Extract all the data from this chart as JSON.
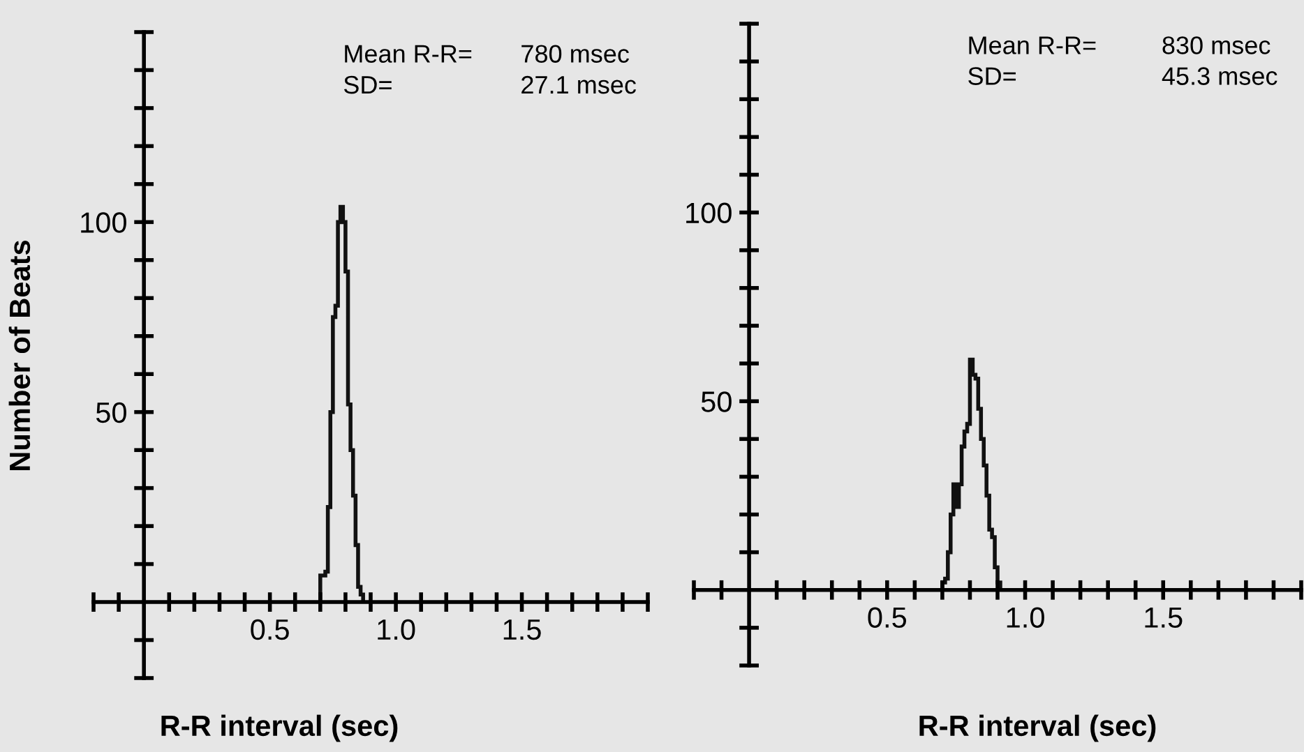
{
  "chart_data": [
    {
      "type": "histogram",
      "xlabel": "R-R interval (sec)",
      "ylabel": "Number of Beats",
      "color": "#111111",
      "annotations": [
        "Mean R-R=",
        "780 msec",
        "SD=",
        "27.1 msec"
      ],
      "bins": [
        0.7,
        0.71,
        0.72,
        0.73,
        0.74,
        0.75,
        0.76,
        0.77,
        0.78,
        0.79,
        0.8,
        0.81,
        0.82,
        0.83,
        0.84,
        0.85,
        0.86,
        0.87
      ],
      "values": [
        7,
        7,
        8,
        25,
        50,
        75,
        78,
        100,
        104,
        100,
        87,
        52,
        40,
        28,
        15,
        4,
        2
      ],
      "xlim": [
        -0.2,
        2.0
      ],
      "ylim": [
        -20,
        150
      ],
      "xticks": [
        {
          "value": -0.2,
          "label": null
        },
        {
          "value": -0.1,
          "label": null
        },
        {
          "value": 0.1,
          "label": null
        },
        {
          "value": 0.2,
          "label": null
        },
        {
          "value": 0.3,
          "label": null
        },
        {
          "value": 0.4,
          "label": null
        },
        {
          "value": 0.5,
          "label": "0.5"
        },
        {
          "value": 0.6,
          "label": null
        },
        {
          "value": 0.7,
          "label": null
        },
        {
          "value": 0.8,
          "label": null
        },
        {
          "value": 0.9,
          "label": null
        },
        {
          "value": 1.0,
          "label": "1.0"
        },
        {
          "value": 1.1,
          "label": null
        },
        {
          "value": 1.2,
          "label": null
        },
        {
          "value": 1.3,
          "label": null
        },
        {
          "value": 1.4,
          "label": null
        },
        {
          "value": 1.5,
          "label": "1.5"
        },
        {
          "value": 1.6,
          "label": null
        },
        {
          "value": 1.7,
          "label": null
        },
        {
          "value": 1.8,
          "label": null
        },
        {
          "value": 1.9,
          "label": null
        },
        {
          "value": 2.0,
          "label": null
        }
      ],
      "yticks": [
        {
          "value": -20,
          "label": null
        },
        {
          "value": -10,
          "label": null
        },
        {
          "value": 10,
          "label": null
        },
        {
          "value": 20,
          "label": null
        },
        {
          "value": 30,
          "label": null
        },
        {
          "value": 40,
          "label": null
        },
        {
          "value": 50,
          "label": "50"
        },
        {
          "value": 60,
          "label": null
        },
        {
          "value": 70,
          "label": null
        },
        {
          "value": 80,
          "label": null
        },
        {
          "value": 90,
          "label": null
        },
        {
          "value": 100,
          "label": "100"
        },
        {
          "value": 110,
          "label": null
        },
        {
          "value": 120,
          "label": null
        },
        {
          "value": 130,
          "label": null
        },
        {
          "value": 140,
          "label": null
        },
        {
          "value": 150,
          "label": null
        }
      ],
      "grid": false,
      "legend": false
    },
    {
      "type": "histogram",
      "xlabel": "R-R interval (sec)",
      "color": "#111111",
      "annotations": [
        "Mean R-R=",
        "830 msec",
        "SD=",
        "45.3 msec"
      ],
      "bins": [
        0.7,
        0.71,
        0.72,
        0.73,
        0.74,
        0.75,
        0.76,
        0.77,
        0.78,
        0.79,
        0.8,
        0.81,
        0.82,
        0.83,
        0.84,
        0.85,
        0.86,
        0.87,
        0.88,
        0.89,
        0.9,
        0.91
      ],
      "values": [
        2,
        3,
        10,
        20,
        28,
        22,
        28,
        38,
        42,
        44,
        61,
        57,
        56,
        48,
        40,
        33,
        25,
        16,
        14,
        6,
        2
      ],
      "xlim": [
        -0.2,
        2.0
      ],
      "ylim": [
        -20,
        150
      ],
      "xticks": [
        {
          "value": -0.2,
          "label": null
        },
        {
          "value": -0.1,
          "label": null
        },
        {
          "value": 0.1,
          "label": null
        },
        {
          "value": 0.2,
          "label": null
        },
        {
          "value": 0.3,
          "label": null
        },
        {
          "value": 0.4,
          "label": null
        },
        {
          "value": 0.5,
          "label": "0.5"
        },
        {
          "value": 0.6,
          "label": null
        },
        {
          "value": 0.7,
          "label": null
        },
        {
          "value": 0.8,
          "label": null
        },
        {
          "value": 0.9,
          "label": null
        },
        {
          "value": 1.0,
          "label": "1.0"
        },
        {
          "value": 1.1,
          "label": null
        },
        {
          "value": 1.2,
          "label": null
        },
        {
          "value": 1.3,
          "label": null
        },
        {
          "value": 1.4,
          "label": null
        },
        {
          "value": 1.5,
          "label": "1.5"
        },
        {
          "value": 1.6,
          "label": null
        },
        {
          "value": 1.7,
          "label": null
        },
        {
          "value": 1.8,
          "label": null
        },
        {
          "value": 1.9,
          "label": null
        },
        {
          "value": 2.0,
          "label": null
        }
      ],
      "yticks": [
        {
          "value": -20,
          "label": null
        },
        {
          "value": -10,
          "label": null
        },
        {
          "value": 10,
          "label": null
        },
        {
          "value": 20,
          "label": null
        },
        {
          "value": 30,
          "label": null
        },
        {
          "value": 40,
          "label": null
        },
        {
          "value": 50,
          "label": "50"
        },
        {
          "value": 60,
          "label": null
        },
        {
          "value": 70,
          "label": null
        },
        {
          "value": 80,
          "label": null
        },
        {
          "value": 90,
          "label": null
        },
        {
          "value": 100,
          "label": "100"
        },
        {
          "value": 110,
          "label": null
        },
        {
          "value": 120,
          "label": null
        },
        {
          "value": 130,
          "label": null
        },
        {
          "value": 140,
          "label": null
        },
        {
          "value": 150,
          "label": null
        }
      ],
      "grid": false,
      "legend": false
    }
  ]
}
